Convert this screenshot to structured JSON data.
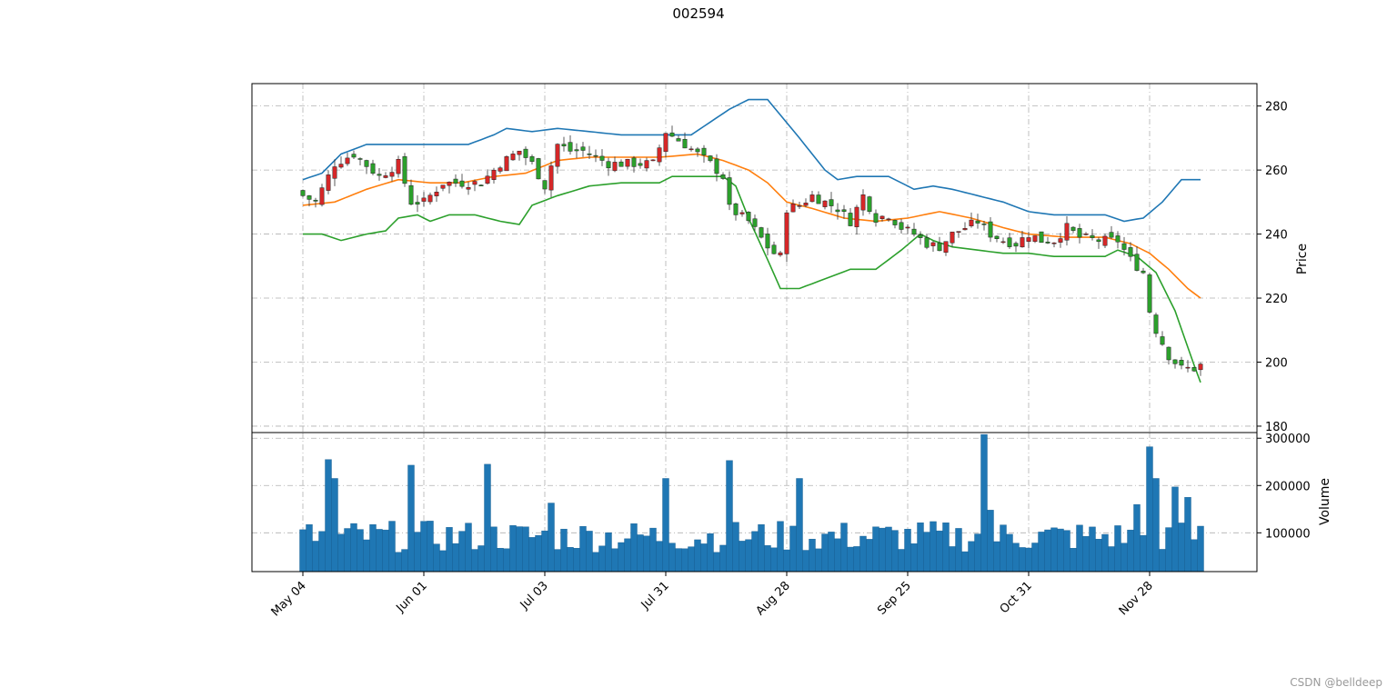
{
  "figure": {
    "title": "002594",
    "watermark": "CSDN @belldeep"
  },
  "chart_data": {
    "type": "candlestick",
    "title": "002594",
    "grid": true,
    "grid_style": "dash-dot",
    "x_tick_labels": [
      "May 04",
      "Jun 01",
      "Jul 03",
      "Jul 31",
      "Aug 28",
      "Sep 25",
      "Oct 31",
      "Nov 28"
    ],
    "x_tick_indices": [
      0,
      19,
      38,
      57,
      76,
      95,
      114,
      133
    ],
    "n_days": 141,
    "colors": {
      "up_body": "#d62728",
      "down_body": "#2ca02c",
      "bb_upper": "#1f77b4",
      "bb_middle": "#ff7f0e",
      "bb_lower": "#2ca02c",
      "volume_bar": "#1f77b4"
    },
    "price_panel": {
      "ylabel": "Price",
      "ylim": [
        178,
        287
      ],
      "yticks": [
        180,
        200,
        220,
        240,
        260,
        280
      ],
      "close_keyframes": [
        [
          0,
          252
        ],
        [
          2,
          250
        ],
        [
          5,
          262
        ],
        [
          8,
          265
        ],
        [
          12,
          258
        ],
        [
          15,
          262
        ],
        [
          17,
          250
        ],
        [
          19,
          250
        ],
        [
          22,
          256
        ],
        [
          25,
          256
        ],
        [
          28,
          256
        ],
        [
          31,
          262
        ],
        [
          34,
          266
        ],
        [
          36,
          262
        ],
        [
          38,
          255
        ],
        [
          40,
          268
        ],
        [
          42,
          266
        ],
        [
          44,
          266
        ],
        [
          48,
          262
        ],
        [
          52,
          262
        ],
        [
          55,
          262
        ],
        [
          57,
          272
        ],
        [
          60,
          268
        ],
        [
          62,
          265
        ],
        [
          64,
          262
        ],
        [
          66,
          258
        ],
        [
          67,
          248
        ],
        [
          70,
          244
        ],
        [
          73,
          236
        ],
        [
          74,
          234
        ],
        [
          75,
          233
        ],
        [
          76,
          248
        ],
        [
          78,
          249
        ],
        [
          80,
          252
        ],
        [
          82,
          250
        ],
        [
          84,
          248
        ],
        [
          86,
          244
        ],
        [
          88,
          252
        ],
        [
          90,
          245
        ],
        [
          92,
          246
        ],
        [
          94,
          242
        ],
        [
          96,
          240
        ],
        [
          98,
          237
        ],
        [
          100,
          236
        ],
        [
          102,
          240
        ],
        [
          104,
          242
        ],
        [
          106,
          244
        ],
        [
          108,
          240
        ],
        [
          110,
          238
        ],
        [
          112,
          237
        ],
        [
          114,
          240
        ],
        [
          116,
          238
        ],
        [
          118,
          238
        ],
        [
          120,
          242
        ],
        [
          122,
          239
        ],
        [
          125,
          238
        ],
        [
          128,
          238
        ],
        [
          130,
          232
        ],
        [
          132,
          228
        ],
        [
          133,
          216
        ],
        [
          134,
          210
        ],
        [
          136,
          202
        ],
        [
          138,
          198
        ],
        [
          140,
          198
        ],
        [
          141,
          199
        ]
      ],
      "bb_upper_keyframes": [
        [
          0,
          257
        ],
        [
          3,
          259
        ],
        [
          6,
          265
        ],
        [
          10,
          268
        ],
        [
          14,
          268
        ],
        [
          20,
          268
        ],
        [
          26,
          268
        ],
        [
          30,
          271
        ],
        [
          32,
          273
        ],
        [
          36,
          272
        ],
        [
          40,
          273
        ],
        [
          45,
          272
        ],
        [
          50,
          271
        ],
        [
          56,
          271
        ],
        [
          61,
          271
        ],
        [
          64,
          275
        ],
        [
          67,
          279
        ],
        [
          70,
          282
        ],
        [
          73,
          282
        ],
        [
          78,
          270
        ],
        [
          82,
          260
        ],
        [
          84,
          257
        ],
        [
          87,
          258
        ],
        [
          92,
          258
        ],
        [
          96,
          254
        ],
        [
          99,
          255
        ],
        [
          102,
          254
        ],
        [
          106,
          252
        ],
        [
          110,
          250
        ],
        [
          114,
          247
        ],
        [
          118,
          246
        ],
        [
          122,
          246
        ],
        [
          126,
          246
        ],
        [
          129,
          244
        ],
        [
          132,
          245
        ],
        [
          135,
          250
        ],
        [
          138,
          257
        ],
        [
          141,
          257
        ],
        [
          143,
          251
        ]
      ],
      "bb_middle_keyframes": [
        [
          0,
          249
        ],
        [
          5,
          250
        ],
        [
          10,
          254
        ],
        [
          15,
          257
        ],
        [
          20,
          256
        ],
        [
          25,
          256
        ],
        [
          30,
          258
        ],
        [
          35,
          259
        ],
        [
          40,
          263
        ],
        [
          45,
          264
        ],
        [
          50,
          264
        ],
        [
          56,
          264
        ],
        [
          62,
          265
        ],
        [
          66,
          263
        ],
        [
          70,
          260
        ],
        [
          73,
          256
        ],
        [
          76,
          250
        ],
        [
          80,
          248
        ],
        [
          85,
          245
        ],
        [
          90,
          244
        ],
        [
          95,
          245
        ],
        [
          100,
          247
        ],
        [
          105,
          245
        ],
        [
          110,
          242
        ],
        [
          114,
          240
        ],
        [
          120,
          239
        ],
        [
          126,
          239
        ],
        [
          130,
          237
        ],
        [
          133,
          234
        ],
        [
          136,
          229
        ],
        [
          139,
          223
        ],
        [
          143,
          217
        ]
      ],
      "bb_lower_keyframes": [
        [
          0,
          240
        ],
        [
          3,
          240
        ],
        [
          6,
          238
        ],
        [
          10,
          240
        ],
        [
          13,
          241
        ],
        [
          15,
          245
        ],
        [
          18,
          246
        ],
        [
          20,
          244
        ],
        [
          23,
          246
        ],
        [
          27,
          246
        ],
        [
          31,
          244
        ],
        [
          34,
          243
        ],
        [
          36,
          249
        ],
        [
          40,
          252
        ],
        [
          45,
          255
        ],
        [
          50,
          256
        ],
        [
          56,
          256
        ],
        [
          58,
          258
        ],
        [
          62,
          258
        ],
        [
          66,
          258
        ],
        [
          68,
          255
        ],
        [
          70,
          245
        ],
        [
          73,
          232
        ],
        [
          75,
          223
        ],
        [
          78,
          223
        ],
        [
          82,
          226
        ],
        [
          86,
          229
        ],
        [
          90,
          229
        ],
        [
          94,
          235
        ],
        [
          97,
          240
        ],
        [
          99,
          238
        ],
        [
          102,
          236
        ],
        [
          106,
          235
        ],
        [
          110,
          234
        ],
        [
          114,
          234
        ],
        [
          118,
          233
        ],
        [
          122,
          233
        ],
        [
          126,
          233
        ],
        [
          128,
          235
        ],
        [
          131,
          233
        ],
        [
          134,
          228
        ],
        [
          137,
          216
        ],
        [
          140,
          199
        ],
        [
          143,
          183
        ]
      ]
    },
    "volume_panel": {
      "ylabel": "Volume",
      "ylim": [
        18000,
        312000
      ],
      "yticks": [
        100000,
        200000,
        300000
      ],
      "volume_spikes": [
        [
          4,
          255000
        ],
        [
          5,
          215000
        ],
        [
          17,
          243000
        ],
        [
          29,
          245000
        ],
        [
          39,
          163000
        ],
        [
          57,
          215000
        ],
        [
          67,
          253000
        ],
        [
          78,
          215000
        ],
        [
          107,
          308000
        ],
        [
          108,
          148000
        ],
        [
          131,
          160000
        ],
        [
          133,
          282000
        ],
        [
          134,
          215000
        ],
        [
          137,
          197000
        ],
        [
          139,
          175000
        ]
      ],
      "volume_base": 90000
    }
  }
}
